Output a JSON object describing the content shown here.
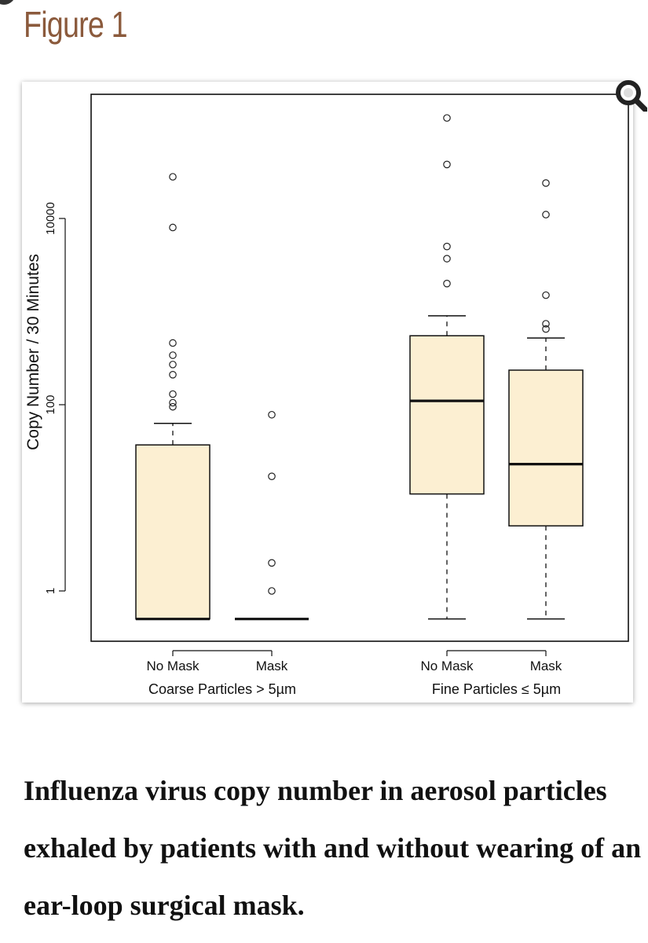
{
  "page": {
    "figure_title": "Figure 1",
    "caption": "Influenza virus copy number in aerosol particles exhaled by patients with and without wearing of an ear-loop surgical mask.",
    "zoom_icon": "magnifier-icon"
  },
  "colors": {
    "box_fill": "#fcefd2",
    "title": "#8b5a3c",
    "stroke": "#111111"
  },
  "chart_data": {
    "type": "boxplot",
    "ylabel": "Copy Number / 30 Minutes",
    "yscale": "log",
    "ylim": [
      0.3,
      150000
    ],
    "yticks": [
      {
        "value": 1,
        "label": "1"
      },
      {
        "value": 100,
        "label": "100"
      },
      {
        "value": 10000,
        "label": "10000"
      }
    ],
    "grid": false,
    "groups": [
      {
        "label": "Coarse Particles > 5µm",
        "categories": [
          "No Mask",
          "Mask"
        ]
      },
      {
        "label": "Fine Particles ≤ 5µm",
        "categories": [
          "No Mask",
          "Mask"
        ]
      }
    ],
    "boxes": [
      {
        "group": 0,
        "label": "No Mask",
        "whisker_low": 0.5,
        "q1": 0.5,
        "median": 0.5,
        "q3": 37,
        "whisker_high": 63,
        "outliers": [
          28000,
          8000,
          460,
          340,
          270,
          210,
          130,
          105,
          95
        ]
      },
      {
        "group": 0,
        "label": "Mask",
        "whisker_low": 0.5,
        "q1": 0.5,
        "median": 0.5,
        "q3": 0.5,
        "whisker_high": 0.5,
        "outliers": [
          78,
          17,
          2,
          1
        ]
      },
      {
        "group": 1,
        "label": "No Mask",
        "whisker_low": 0.5,
        "q1": 11,
        "median": 110,
        "q3": 550,
        "whisker_high": 900,
        "outliers": [
          120000,
          38000,
          5000,
          3700,
          2000
        ]
      },
      {
        "group": 1,
        "label": "Mask",
        "whisker_low": 0.5,
        "q1": 5,
        "median": 23,
        "q3": 235,
        "whisker_high": 520,
        "outliers": [
          24000,
          11000,
          1500,
          740,
          650
        ]
      }
    ]
  }
}
